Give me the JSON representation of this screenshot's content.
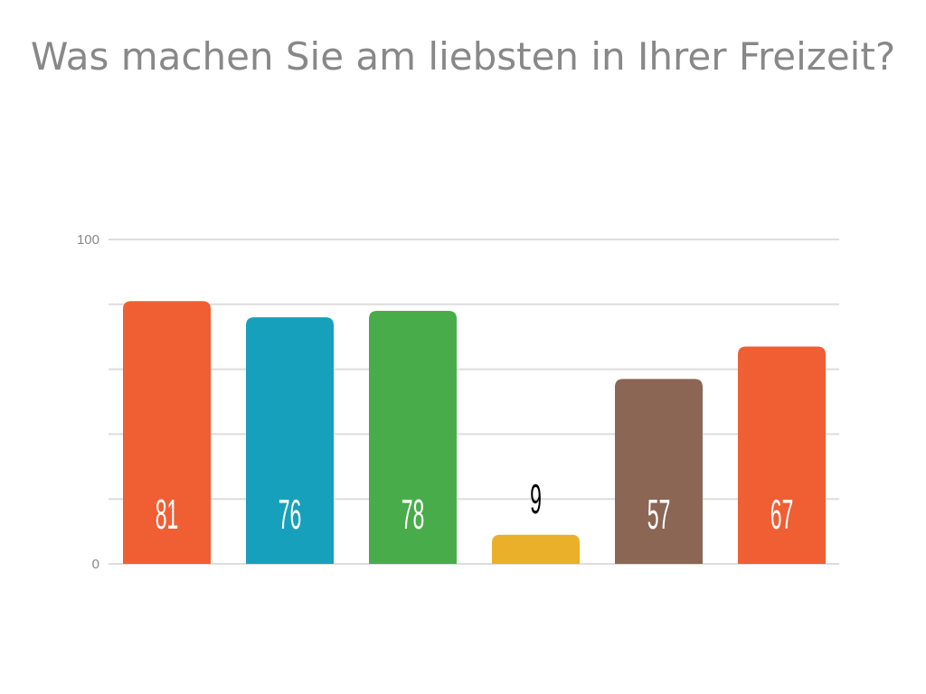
{
  "chart_data": {
    "type": "bar",
    "title": "Was machen Sie am liebsten in Ihrer Freizeit?",
    "xlabel": "",
    "ylabel": "",
    "ylim": [
      0,
      100
    ],
    "grid": true,
    "gridlines": [
      0,
      20,
      40,
      60,
      80,
      100
    ],
    "tick_labels": [
      {
        "value": 0,
        "label": "0"
      },
      {
        "value": 100,
        "label": "100"
      }
    ],
    "categories": [
      "",
      "",
      "",
      "",
      "",
      ""
    ],
    "values": [
      81,
      76,
      78,
      9,
      57,
      67
    ],
    "data_labels": [
      "81",
      "76",
      "78",
      "9",
      "57",
      "67"
    ],
    "colors": [
      "#f05e33",
      "#17a0bb",
      "#49ac4a",
      "#ebb029",
      "#8b6654",
      "#f05e33"
    ],
    "label_colors": [
      "#ffffff",
      "#ffffff",
      "#ffffff",
      "#000000",
      "#ffffff",
      "#ffffff"
    ]
  }
}
